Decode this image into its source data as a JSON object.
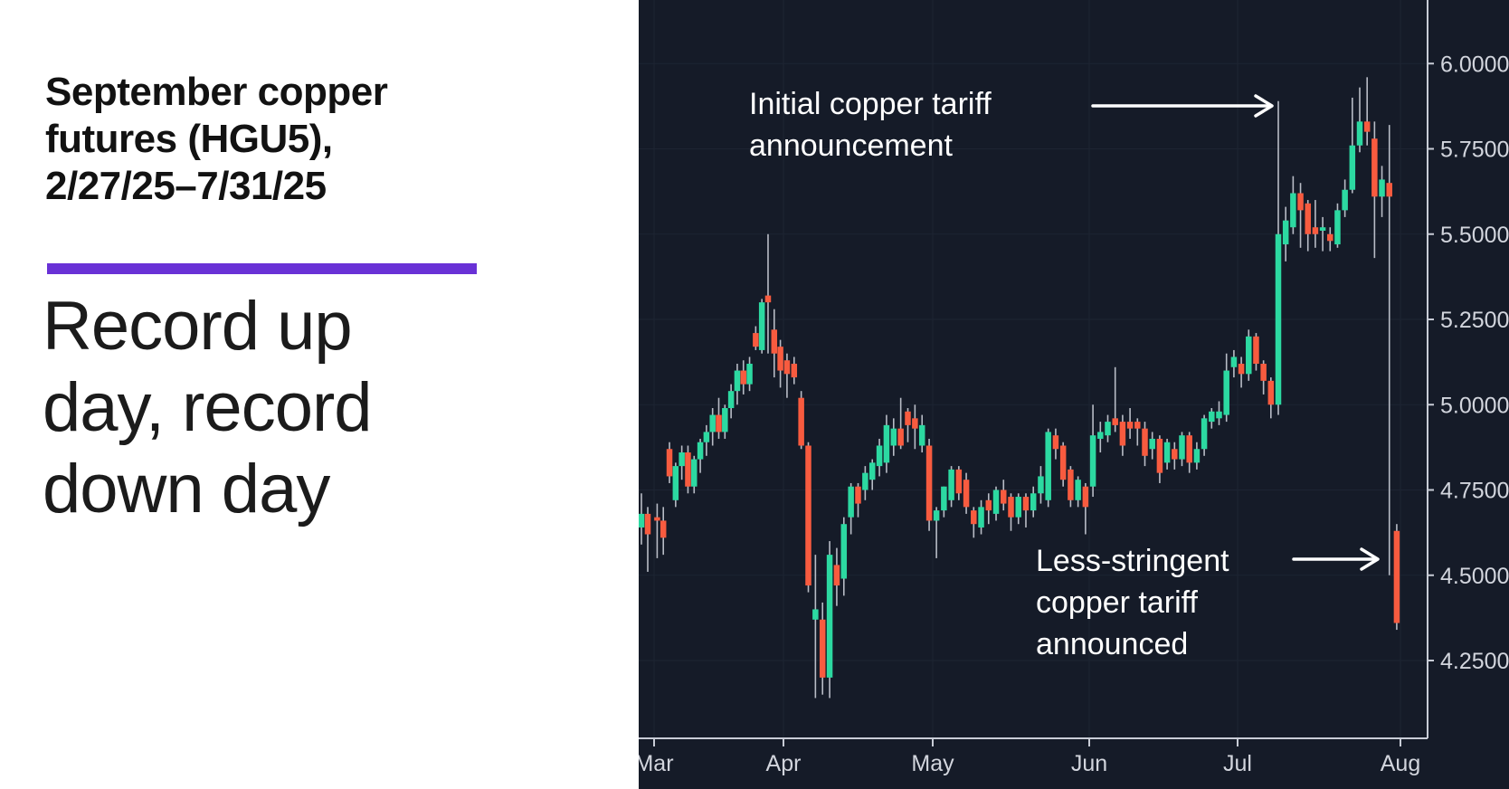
{
  "left_panel": {
    "title_lines": [
      "September copper",
      "futures (HGU5),",
      "2/27/25–7/31/25"
    ],
    "accent_color": "#6931D6",
    "subtitle_lines": [
      "Record up",
      "day, record",
      "down day"
    ]
  },
  "chart": {
    "background": "#151B28",
    "grid_color": "#1D2432",
    "axis_color": "#C8CCD6",
    "label_color": "#D2D5DD"
  },
  "chart_data": {
    "type": "candlestick",
    "title": "September copper futures (HGU5), 2/27/25–7/31/25",
    "symbol": "HGU5",
    "date_range": "2/27/25–7/31/25",
    "grid": true,
    "legend_position": "none",
    "up_color": "#2CD9A1",
    "down_color": "#F85B3F",
    "wick_color": "#B8BCC6",
    "ylim": [
      4.02,
      6.19
    ],
    "y_ticks": [
      {
        "label": "6.0000",
        "value": 6.0
      },
      {
        "label": "5.7500",
        "value": 5.75
      },
      {
        "label": "5.5000",
        "value": 5.5
      },
      {
        "label": "5.2500",
        "value": 5.25
      },
      {
        "label": "5.0000",
        "value": 5.0
      },
      {
        "label": "4.7500",
        "value": 4.75
      },
      {
        "label": "4.5000",
        "value": 4.5
      },
      {
        "label": "4.2500",
        "value": 4.25
      }
    ],
    "x_ticks": [
      {
        "label": "Mar",
        "index": 2,
        "x": 17
      },
      {
        "label": "Apr",
        "index": 23,
        "x": 160
      },
      {
        "label": "May",
        "index": 44,
        "x": 325
      },
      {
        "label": "Jun",
        "index": 65,
        "x": 498
      },
      {
        "label": "Jul",
        "index": 85,
        "x": 662
      },
      {
        "label": "Aug",
        "index": 107,
        "x": 842
      }
    ],
    "candles": [
      [
        "2/27",
        4.64,
        4.74,
        4.59,
        4.68
      ],
      [
        "2/28",
        4.68,
        4.7,
        4.51,
        4.62
      ],
      [
        "3/3",
        4.67,
        4.71,
        4.55,
        4.66
      ],
      [
        "3/4",
        4.66,
        4.7,
        4.56,
        4.61
      ],
      [
        "3/5",
        4.87,
        4.89,
        4.77,
        4.79
      ],
      [
        "3/6",
        4.72,
        4.83,
        4.7,
        4.82
      ],
      [
        "3/7",
        4.82,
        4.88,
        4.78,
        4.86
      ],
      [
        "3/10",
        4.86,
        4.88,
        4.74,
        4.76
      ],
      [
        "3/11",
        4.76,
        4.85,
        4.74,
        4.84
      ],
      [
        "3/12",
        4.84,
        4.9,
        4.8,
        4.89
      ],
      [
        "3/13",
        4.89,
        4.94,
        4.85,
        4.92
      ],
      [
        "3/14",
        4.92,
        4.99,
        4.88,
        4.97
      ],
      [
        "3/17",
        4.97,
        5.02,
        4.9,
        4.92
      ],
      [
        "3/18",
        4.92,
        5.0,
        4.9,
        4.99
      ],
      [
        "3/19",
        4.99,
        5.06,
        4.96,
        5.04
      ],
      [
        "3/20",
        5.04,
        5.12,
        5.0,
        5.1
      ],
      [
        "3/21",
        5.1,
        5.13,
        5.03,
        5.06
      ],
      [
        "3/24",
        5.06,
        5.14,
        5.04,
        5.12
      ],
      [
        "3/25",
        5.21,
        5.23,
        5.16,
        5.17
      ],
      [
        "3/26",
        5.16,
        5.31,
        5.15,
        5.3
      ],
      [
        "3/27",
        5.32,
        5.5,
        5.15,
        5.3
      ],
      [
        "3/28",
        5.22,
        5.28,
        5.08,
        5.15
      ],
      [
        "3/31",
        5.17,
        5.19,
        5.05,
        5.1
      ],
      [
        "4/1",
        5.13,
        5.15,
        5.02,
        5.09
      ],
      [
        "4/2",
        5.12,
        5.14,
        5.06,
        5.08
      ],
      [
        "4/3",
        5.02,
        5.04,
        4.87,
        4.88
      ],
      [
        "4/4",
        4.88,
        4.89,
        4.45,
        4.47
      ],
      [
        "4/7",
        4.37,
        4.56,
        4.14,
        4.4
      ],
      [
        "4/8",
        4.37,
        4.42,
        4.15,
        4.2
      ],
      [
        "4/9",
        4.2,
        4.6,
        4.14,
        4.56
      ],
      [
        "4/10",
        4.53,
        4.58,
        4.41,
        4.47
      ],
      [
        "4/11",
        4.49,
        4.67,
        4.44,
        4.65
      ],
      [
        "4/14",
        4.67,
        4.77,
        4.62,
        4.76
      ],
      [
        "4/15",
        4.76,
        4.77,
        4.67,
        4.71
      ],
      [
        "4/16",
        4.75,
        4.82,
        4.72,
        4.8
      ],
      [
        "4/17",
        4.78,
        4.84,
        4.75,
        4.83
      ],
      [
        "4/21",
        4.82,
        4.9,
        4.79,
        4.88
      ],
      [
        "4/22",
        4.83,
        4.97,
        4.8,
        4.94
      ],
      [
        "4/23",
        4.88,
        4.96,
        4.85,
        4.93
      ],
      [
        "4/24",
        4.93,
        5.02,
        4.87,
        4.88
      ],
      [
        "4/25",
        4.98,
        4.99,
        4.89,
        4.94
      ],
      [
        "4/28",
        4.96,
        5.0,
        4.87,
        4.93
      ],
      [
        "4/29",
        4.88,
        4.97,
        4.86,
        4.94
      ],
      [
        "4/30",
        4.88,
        4.9,
        4.63,
        4.66
      ],
      [
        "5/1",
        4.66,
        4.7,
        4.55,
        4.69
      ],
      [
        "5/2",
        4.69,
        4.76,
        4.67,
        4.76
      ],
      [
        "5/5",
        4.72,
        4.82,
        4.7,
        4.81
      ],
      [
        "5/6",
        4.81,
        4.82,
        4.72,
        4.74
      ],
      [
        "5/7",
        4.78,
        4.8,
        4.68,
        4.7
      ],
      [
        "5/8",
        4.69,
        4.7,
        4.61,
        4.65
      ],
      [
        "5/9",
        4.64,
        4.72,
        4.62,
        4.7
      ],
      [
        "5/12",
        4.72,
        4.74,
        4.65,
        4.69
      ],
      [
        "5/13",
        4.68,
        4.76,
        4.66,
        4.75
      ],
      [
        "5/14",
        4.75,
        4.78,
        4.69,
        4.71
      ],
      [
        "5/15",
        4.73,
        4.74,
        4.63,
        4.67
      ],
      [
        "5/16",
        4.67,
        4.74,
        4.65,
        4.73
      ],
      [
        "5/19",
        4.73,
        4.74,
        4.64,
        4.69
      ],
      [
        "5/20",
        4.69,
        4.76,
        4.67,
        4.74
      ],
      [
        "5/21",
        4.74,
        4.82,
        4.71,
        4.79
      ],
      [
        "5/22",
        4.72,
        4.93,
        4.7,
        4.92
      ],
      [
        "5/23",
        4.91,
        4.93,
        4.84,
        4.87
      ],
      [
        "5/27",
        4.88,
        4.89,
        4.76,
        4.78
      ],
      [
        "5/28",
        4.81,
        4.82,
        4.7,
        4.72
      ],
      [
        "5/29",
        4.72,
        4.79,
        4.7,
        4.78
      ],
      [
        "5/30",
        4.76,
        4.77,
        4.62,
        4.7
      ],
      [
        "6/2",
        4.76,
        5.0,
        4.73,
        4.91
      ],
      [
        "6/3",
        4.9,
        4.95,
        4.86,
        4.92
      ],
      [
        "6/4",
        4.91,
        4.97,
        4.89,
        4.95
      ],
      [
        "6/5",
        4.96,
        5.11,
        4.92,
        4.94
      ],
      [
        "6/6",
        4.95,
        4.97,
        4.85,
        4.88
      ],
      [
        "6/9",
        4.95,
        4.99,
        4.9,
        4.93
      ],
      [
        "6/10",
        4.95,
        4.96,
        4.88,
        4.93
      ],
      [
        "6/11",
        4.93,
        4.95,
        4.82,
        4.85
      ],
      [
        "6/12",
        4.87,
        4.92,
        4.84,
        4.9
      ],
      [
        "6/13",
        4.9,
        4.91,
        4.77,
        4.8
      ],
      [
        "6/16",
        4.83,
        4.9,
        4.81,
        4.89
      ],
      [
        "6/17",
        4.87,
        4.89,
        4.81,
        4.84
      ],
      [
        "6/18",
        4.84,
        4.92,
        4.82,
        4.91
      ],
      [
        "6/20",
        4.91,
        4.92,
        4.8,
        4.83
      ],
      [
        "6/23",
        4.83,
        4.89,
        4.81,
        4.87
      ],
      [
        "6/24",
        4.87,
        4.97,
        4.85,
        4.96
      ],
      [
        "6/25",
        4.95,
        4.99,
        4.93,
        4.98
      ],
      [
        "6/26",
        4.96,
        5.01,
        4.94,
        4.98
      ],
      [
        "6/27",
        4.97,
        5.15,
        4.95,
        5.1
      ],
      [
        "6/30",
        5.11,
        5.16,
        5.08,
        5.14
      ],
      [
        "7/1",
        5.12,
        5.14,
        5.05,
        5.09
      ],
      [
        "7/2",
        5.09,
        5.22,
        5.07,
        5.2
      ],
      [
        "7/3",
        5.2,
        5.21,
        5.1,
        5.12
      ],
      [
        "7/7",
        5.12,
        5.13,
        5.03,
        5.07
      ],
      [
        "7/8",
        5.07,
        5.08,
        4.96,
        5.0
      ],
      [
        "7/9",
        5.0,
        5.89,
        4.97,
        5.5
      ],
      [
        "7/10",
        5.47,
        5.58,
        5.42,
        5.54
      ],
      [
        "7/11",
        5.52,
        5.67,
        5.5,
        5.62
      ],
      [
        "7/14",
        5.62,
        5.65,
        5.46,
        5.57
      ],
      [
        "7/15",
        5.59,
        5.6,
        5.45,
        5.5
      ],
      [
        "7/16",
        5.52,
        5.6,
        5.46,
        5.5
      ],
      [
        "7/17",
        5.51,
        5.55,
        5.45,
        5.52
      ],
      [
        "7/18",
        5.5,
        5.52,
        5.45,
        5.48
      ],
      [
        "7/21",
        5.47,
        5.59,
        5.46,
        5.57
      ],
      [
        "7/22",
        5.57,
        5.66,
        5.55,
        5.63
      ],
      [
        "7/23",
        5.63,
        5.9,
        5.62,
        5.76
      ],
      [
        "7/24",
        5.76,
        5.93,
        5.74,
        5.83
      ],
      [
        "7/25",
        5.83,
        5.96,
        5.76,
        5.8
      ],
      [
        "7/28",
        5.78,
        5.83,
        5.43,
        5.61
      ],
      [
        "7/29",
        5.61,
        5.7,
        5.55,
        5.66
      ],
      [
        "7/30",
        5.65,
        5.82,
        4.5,
        5.61
      ],
      [
        "7/31",
        4.63,
        4.65,
        4.34,
        4.36
      ]
    ],
    "annotations": [
      {
        "lines": [
          "Initial copper tariff",
          "announcement"
        ],
        "points_to": "7/9 record up day spike high"
      },
      {
        "lines": [
          "Less-stringent",
          "copper tariff",
          "announced"
        ],
        "points_to": "7/31 record down day candle"
      }
    ]
  }
}
